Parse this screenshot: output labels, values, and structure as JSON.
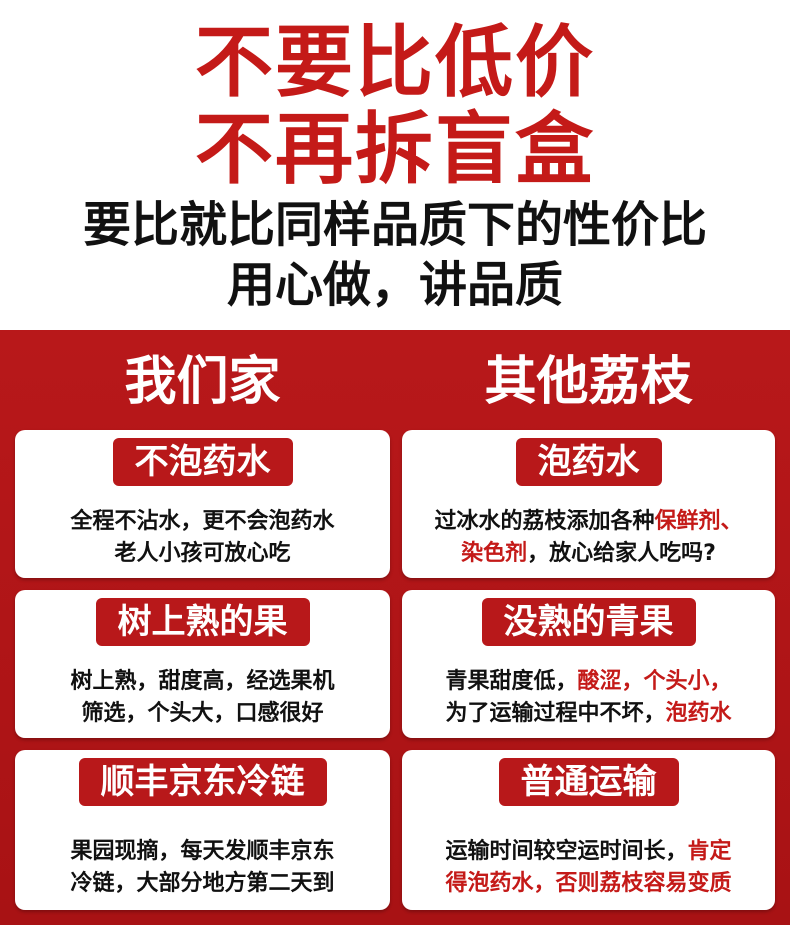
{
  "hero": {
    "line1": "不要比低价",
    "line2": "不再拆盲盒",
    "line3": "要比就比同样品质下的性价比",
    "line4": "用心做，讲品质"
  },
  "columns": {
    "ours": {
      "title": "我们家",
      "cards": [
        {
          "badge": "不泡药水",
          "line1": "全程不沾水，更不会泡药水",
          "line2": "老人小孩可放心吃"
        },
        {
          "badge": "树上熟的果",
          "line1": "树上熟，甜度高，经选果机",
          "line2": "筛选，个头大，口感很好"
        },
        {
          "badge": "顺丰京东冷链",
          "line1": "果园现摘，每天发顺丰京东",
          "line2": "冷链，大部分地方第二天到"
        }
      ]
    },
    "others": {
      "title": "其他荔枝",
      "cards": [
        {
          "badge": "泡药水",
          "line1_a": "过冰水的荔枝添加各种",
          "line1_hl": "保鲜剂、",
          "line2_hl": "染色剂",
          "line2_b": "，放心给家人吃吗?"
        },
        {
          "badge": "没熟的青果",
          "line1_a": "青果甜度低，",
          "line1_hl": "酸涩，个头小，",
          "line2_a": "为了运输过程中不坏，",
          "line2_hl": "泡药水"
        },
        {
          "badge": "普通运输",
          "line1_a": "运输时间较空运时间长，",
          "line1_hl": "肯定",
          "line2_hl": "得泡药水，否则荔枝容易变质"
        }
      ]
    }
  },
  "colors": {
    "brand_red": "#b8181a",
    "text_red": "#c41a18",
    "text_dark": "#111111",
    "card_bg": "#ffffff"
  }
}
